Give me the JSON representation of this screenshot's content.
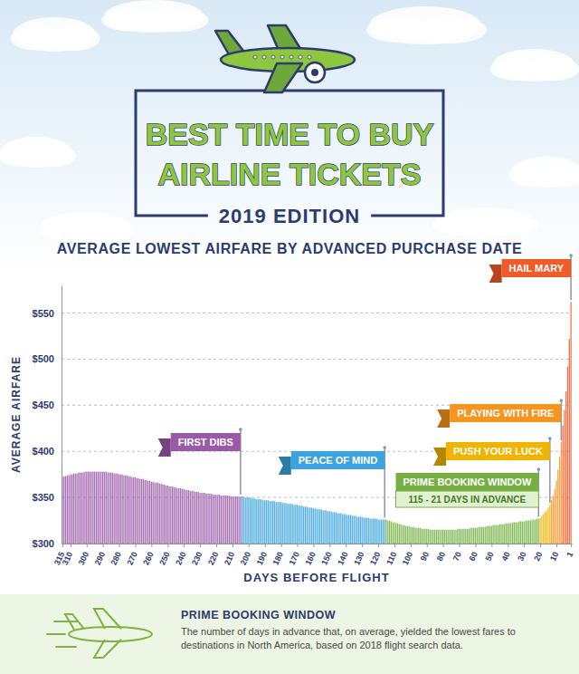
{
  "header": {
    "title": [
      "BEST TIME TO BUY",
      "AIRLINE TICKETS"
    ],
    "edition": "2019 EDITION"
  },
  "chart_data": {
    "type": "bar",
    "title": "AVERAGE LOWEST AIRFARE BY ADVANCED PURCHASE DATE",
    "x_label": "DAYS BEFORE FLIGHT",
    "y_label": "AVERAGE AIRFARE",
    "xlim": [
      315.5,
      0.5
    ],
    "xticks": [
      315,
      310,
      300,
      290,
      280,
      270,
      260,
      250,
      240,
      230,
      220,
      210,
      200,
      190,
      180,
      170,
      160,
      150,
      140,
      130,
      120,
      110,
      100,
      90,
      80,
      70,
      60,
      50,
      40,
      30,
      20,
      10,
      1
    ],
    "ylim": [
      300,
      580
    ],
    "yticks": [
      {
        "value": 300,
        "label": "$300"
      },
      {
        "value": 350,
        "label": "$350"
      },
      {
        "value": 400,
        "label": "$400"
      },
      {
        "value": 450,
        "label": "$450"
      },
      {
        "value": 500,
        "label": "$500"
      },
      {
        "value": 550,
        "label": "$550"
      }
    ],
    "grid": true,
    "annotations": [
      "115 - 21 DAYS IN ADVANCE"
    ],
    "series": [
      {
        "name": "FIRST DIBS",
        "color": "#9b5aa8",
        "x": [
          315,
          314,
          313,
          312,
          311,
          310,
          309,
          308,
          307,
          306,
          305,
          304,
          303,
          302,
          301,
          300,
          299,
          298,
          297,
          296,
          295,
          294,
          293,
          292,
          291,
          290,
          289,
          288,
          287,
          286,
          285,
          284,
          283,
          282,
          281,
          280,
          279,
          278,
          277,
          276,
          275,
          274,
          273,
          272,
          271,
          270,
          269,
          268,
          267,
          266,
          265,
          264,
          263,
          262,
          261,
          260,
          259,
          258,
          257,
          256,
          255,
          254,
          253,
          252,
          251,
          250,
          249,
          248,
          247,
          246,
          245,
          244,
          243,
          242,
          241,
          240,
          239,
          238,
          237,
          236,
          235,
          234,
          233,
          232,
          231,
          230,
          229,
          228,
          227,
          226,
          225,
          224,
          223,
          222,
          221,
          220,
          219,
          218,
          217,
          216,
          215,
          214,
          213,
          212,
          211,
          210,
          209,
          208,
          207,
          206,
          205
        ],
        "values": [
          372,
          373,
          373,
          374,
          374,
          375,
          375,
          376,
          376,
          376,
          377,
          377,
          377,
          377,
          378,
          378,
          378,
          378,
          378,
          378,
          378,
          378,
          378,
          378,
          378,
          378,
          378,
          378,
          377,
          377,
          377,
          377,
          376,
          376,
          376,
          375,
          375,
          375,
          374,
          374,
          374,
          373,
          373,
          372,
          372,
          372,
          371,
          371,
          370,
          370,
          370,
          369,
          369,
          368,
          368,
          367,
          367,
          366,
          366,
          366,
          365,
          365,
          364,
          364,
          363,
          363,
          362,
          362,
          362,
          361,
          361,
          360,
          360,
          360,
          359,
          359,
          358,
          358,
          358,
          357,
          357,
          357,
          356,
          356,
          356,
          355,
          355,
          355,
          355,
          354,
          354,
          354,
          354,
          353,
          353,
          353,
          353,
          353,
          352,
          352,
          352,
          352,
          352,
          352,
          351,
          351,
          351,
          351,
          351,
          351,
          351
        ]
      },
      {
        "name": "PEACE OF MIND",
        "color": "#3ba3dd",
        "x": [
          204,
          203,
          202,
          201,
          200,
          199,
          198,
          197,
          196,
          195,
          194,
          193,
          192,
          191,
          190,
          189,
          188,
          187,
          186,
          185,
          184,
          183,
          182,
          181,
          180,
          179,
          178,
          177,
          176,
          175,
          174,
          173,
          172,
          171,
          170,
          169,
          168,
          167,
          166,
          165,
          164,
          163,
          162,
          161,
          160,
          159,
          158,
          157,
          156,
          155,
          154,
          153,
          152,
          151,
          150,
          149,
          148,
          147,
          146,
          145,
          144,
          143,
          142,
          141,
          140,
          139,
          138,
          137,
          136,
          135,
          134,
          133,
          132,
          131,
          130,
          129,
          128,
          127,
          126,
          125,
          124,
          123,
          122,
          121,
          120,
          119,
          118,
          117,
          116
        ],
        "values": [
          351,
          351,
          350,
          350,
          350,
          350,
          349,
          349,
          349,
          348,
          348,
          348,
          348,
          347,
          347,
          347,
          347,
          346,
          346,
          346,
          346,
          345,
          345,
          345,
          345,
          344,
          344,
          344,
          343,
          343,
          343,
          343,
          342,
          342,
          342,
          341,
          341,
          341,
          340,
          340,
          340,
          339,
          339,
          339,
          338,
          338,
          338,
          337,
          337,
          337,
          336,
          336,
          336,
          335,
          335,
          335,
          334,
          334,
          334,
          333,
          333,
          333,
          332,
          332,
          332,
          331,
          331,
          331,
          330,
          330,
          330,
          329,
          329,
          329,
          329,
          328,
          328,
          328,
          328,
          327,
          327,
          327,
          327,
          327,
          326,
          326,
          326,
          326,
          326
        ]
      },
      {
        "name": "PRIME BOOKING WINDOW",
        "color": "#76b043",
        "x": [
          115,
          114,
          113,
          112,
          111,
          110,
          109,
          108,
          107,
          106,
          105,
          104,
          103,
          102,
          101,
          100,
          99,
          98,
          97,
          96,
          95,
          94,
          93,
          92,
          91,
          90,
          89,
          88,
          87,
          86,
          85,
          84,
          83,
          82,
          81,
          80,
          79,
          78,
          77,
          76,
          75,
          74,
          73,
          72,
          71,
          70,
          69,
          68,
          67,
          66,
          65,
          64,
          63,
          62,
          61,
          60,
          59,
          58,
          57,
          56,
          55,
          54,
          53,
          52,
          51,
          50,
          49,
          48,
          47,
          46,
          45,
          44,
          43,
          42,
          41,
          40,
          39,
          38,
          37,
          36,
          35,
          34,
          33,
          32,
          31,
          30,
          29,
          28,
          27,
          26,
          25,
          24,
          23,
          22,
          21
        ],
        "values": [
          326,
          325,
          325,
          324,
          323,
          323,
          322,
          322,
          321,
          321,
          320,
          320,
          319,
          319,
          319,
          318,
          318,
          318,
          317,
          317,
          317,
          317,
          316,
          316,
          316,
          316,
          316,
          315,
          315,
          315,
          315,
          315,
          315,
          315,
          315,
          315,
          315,
          315,
          315,
          315,
          315,
          315,
          315,
          315,
          316,
          316,
          316,
          316,
          316,
          316,
          316,
          316,
          317,
          317,
          317,
          317,
          317,
          318,
          318,
          318,
          318,
          318,
          319,
          319,
          319,
          319,
          320,
          320,
          320,
          320,
          321,
          321,
          321,
          321,
          322,
          322,
          322,
          322,
          323,
          323,
          323,
          323,
          324,
          324,
          324,
          324,
          325,
          325,
          325,
          325,
          326,
          326,
          326,
          327,
          327
        ]
      },
      {
        "name": "PUSH YOUR LUCK",
        "color": "#f0b400",
        "x": [
          20,
          19,
          18,
          17,
          16,
          15,
          14
        ],
        "values": [
          328,
          330,
          332,
          334,
          336,
          339,
          342
        ]
      },
      {
        "name": "PLAYING WITH FIRE",
        "color": "#f7941d",
        "x": [
          13,
          12,
          11,
          10,
          9,
          8,
          7
        ],
        "values": [
          347,
          352,
          359,
          368,
          380,
          394,
          410
        ]
      },
      {
        "name": "HAIL MARY",
        "color": "#f15a29",
        "x": [
          6,
          5,
          4,
          3,
          2,
          1
        ],
        "values": [
          428,
          445,
          465,
          492,
          522,
          562
        ]
      }
    ]
  },
  "footer": {
    "title": "PRIME BOOKING WINDOW",
    "text": "The number of days in advance that, on average, yielded the lowest fares to destinations in North America, based on 2018 flight search data."
  }
}
